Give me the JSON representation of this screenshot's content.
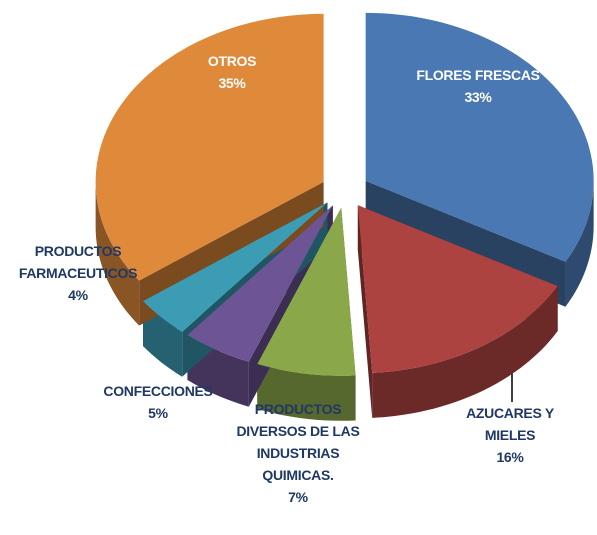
{
  "chart_data": {
    "type": "pie",
    "categories": [
      "FLORES FRESCAS",
      "AZUCARES Y MIELES",
      "PRODUCTOS DIVERSOS DE LAS INDUSTRIAS QUIMICAS.",
      "CONFECCIONES",
      "PRODUCTOS FARMACEUTICOS",
      "OTROS"
    ],
    "values": [
      33,
      16,
      7,
      5,
      4,
      35
    ],
    "value_labels": [
      "33%",
      "16%",
      "7%",
      "5%",
      "4%",
      "35%"
    ],
    "colors": [
      "#4a78b2",
      "#ad4340",
      "#8aa84a",
      "#6d5495",
      "#3b9cb4",
      "#df893b"
    ]
  }
}
